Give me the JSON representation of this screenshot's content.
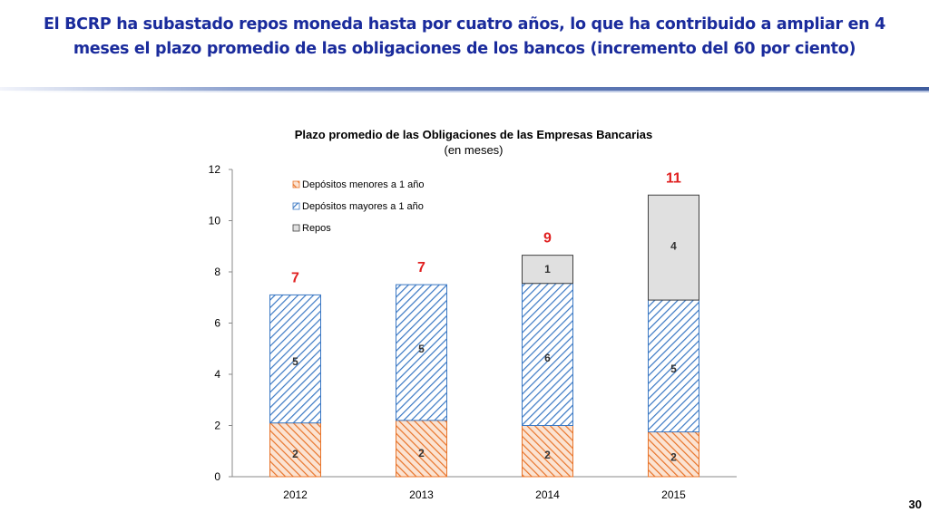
{
  "slide": {
    "title_line1": "El BCRP ha subastado repos moneda hasta por cuatro años, lo que ha contribuido a ampliar  en 4",
    "title_line2": "meses el plazo promedio de las obligaciones de los bancos (incremento del 60 por ciento)",
    "page_number": "30"
  },
  "colors": {
    "short_deposits": "#e8742a",
    "long_deposits": "#3a78c4",
    "repos": "#e0e0e0",
    "totals": "#e02020",
    "title": "#1a2b9c"
  },
  "chart_data": {
    "type": "bar",
    "stacked": true,
    "title": "Plazo promedio de las Obligaciones de las Empresas Bancarias",
    "subtitle": "(en meses)",
    "categories": [
      "2012",
      "2013",
      "2014",
      "2015"
    ],
    "ylim": [
      0,
      12
    ],
    "yticks": [
      "0",
      "2",
      "4",
      "6",
      "8",
      "10",
      "12"
    ],
    "legend_position": "top-left",
    "grid": false,
    "series": [
      {
        "name": "Depósitos menores a 1 año",
        "values": [
          2.1,
          2.2,
          2.0,
          1.75
        ],
        "labels": [
          "2",
          "2",
          "2",
          "2"
        ],
        "pattern": "short"
      },
      {
        "name": "Depósitos mayores a 1 año",
        "values": [
          5.0,
          5.3,
          5.55,
          5.15
        ],
        "labels": [
          "5",
          "5",
          "6",
          "5"
        ],
        "pattern": "long"
      },
      {
        "name": "Repos",
        "values": [
          0,
          0,
          1.1,
          4.1
        ],
        "labels": [
          "",
          "",
          "1",
          "4"
        ],
        "pattern": "repos"
      }
    ],
    "totals": [
      "7",
      "7",
      "9",
      "11"
    ]
  }
}
